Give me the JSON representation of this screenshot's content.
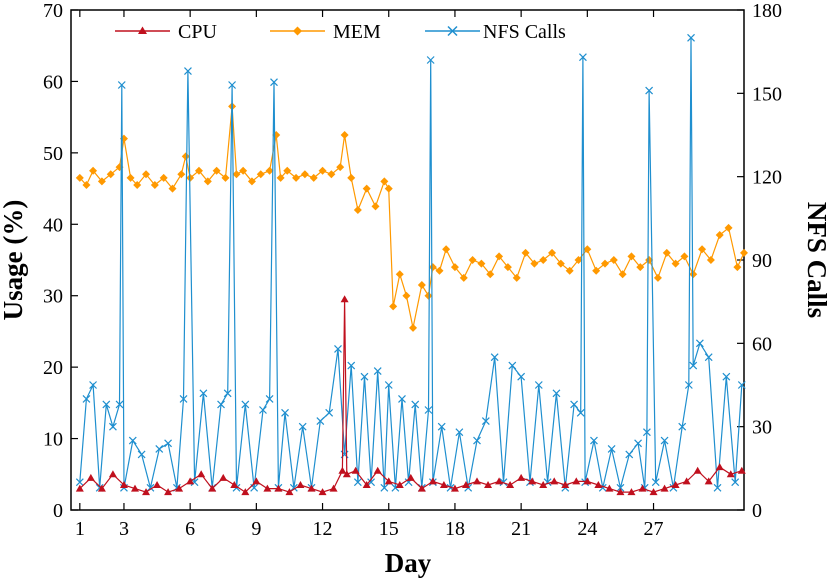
{
  "chart_data": {
    "type": "line",
    "title": "",
    "xlabel": "Day",
    "ylabel_left": "Usage (%)",
    "ylabel_right": "NFS Calls",
    "xlim": [
      0.6,
      31.1
    ],
    "ylim_left": [
      0,
      70
    ],
    "ylim_right": [
      0,
      180
    ],
    "x_ticks": [
      1,
      3,
      6,
      9,
      12,
      15,
      18,
      21,
      24,
      27
    ],
    "y_ticks_left": [
      0,
      10,
      20,
      30,
      40,
      50,
      60,
      70
    ],
    "y_ticks_right": [
      0,
      30,
      60,
      90,
      120,
      150,
      180
    ],
    "grid": false,
    "legend_position": "top",
    "colors": {
      "cpu": "#c0101e",
      "mem": "#ff9900",
      "nfs": "#1f8fcf"
    },
    "series": [
      {
        "name": "CPU",
        "axis": "left",
        "marker": "triangle",
        "x": [
          1.0,
          1.5,
          2.0,
          2.5,
          3.0,
          3.5,
          4.0,
          4.5,
          5.0,
          5.5,
          6.0,
          6.5,
          7.0,
          7.5,
          8.0,
          8.5,
          9.0,
          9.5,
          10.0,
          10.5,
          11.0,
          11.5,
          12.0,
          12.5,
          12.9,
          13.0,
          13.1,
          13.5,
          14.0,
          14.5,
          15.0,
          15.5,
          16.0,
          16.5,
          17.0,
          17.5,
          18.0,
          18.5,
          19.0,
          19.5,
          20.0,
          20.5,
          21.0,
          21.5,
          22.0,
          22.5,
          23.0,
          23.5,
          24.0,
          24.5,
          25.0,
          25.5,
          26.0,
          26.5,
          27.0,
          27.5,
          28.0,
          28.5,
          29.0,
          29.5,
          30.0,
          30.5,
          31.0
        ],
        "values": [
          3.0,
          4.5,
          3.0,
          5.0,
          3.5,
          3.0,
          2.5,
          3.5,
          2.5,
          3.0,
          4.0,
          5.0,
          3.0,
          4.5,
          3.5,
          2.5,
          4.0,
          3.0,
          3.0,
          2.5,
          3.5,
          3.0,
          2.5,
          3.0,
          5.5,
          29.5,
          5.0,
          5.5,
          3.5,
          5.5,
          4.0,
          3.5,
          4.5,
          3.0,
          4.0,
          3.5,
          3.0,
          3.5,
          4.0,
          3.5,
          4.0,
          3.5,
          4.5,
          4.0,
          3.5,
          4.0,
          3.5,
          4.0,
          4.0,
          3.5,
          3.0,
          2.5,
          2.5,
          3.0,
          2.5,
          3.0,
          3.5,
          4.0,
          5.5,
          4.0,
          6.0,
          5.0,
          5.5
        ]
      },
      {
        "name": "MEM",
        "axis": "left",
        "marker": "diamond",
        "x": [
          1.0,
          1.3,
          1.6,
          2.0,
          2.4,
          2.8,
          3.0,
          3.3,
          3.6,
          4.0,
          4.4,
          4.8,
          5.2,
          5.6,
          5.8,
          6.0,
          6.4,
          6.8,
          7.2,
          7.6,
          7.9,
          8.1,
          8.4,
          8.8,
          9.2,
          9.6,
          9.9,
          10.1,
          10.4,
          10.8,
          11.2,
          11.6,
          12.0,
          12.4,
          12.8,
          13.0,
          13.3,
          13.6,
          14.0,
          14.4,
          14.8,
          15.0,
          15.2,
          15.5,
          15.8,
          16.1,
          16.5,
          16.8,
          17.0,
          17.3,
          17.6,
          18.0,
          18.4,
          18.8,
          19.2,
          19.6,
          20.0,
          20.4,
          20.8,
          21.2,
          21.6,
          22.0,
          22.4,
          22.8,
          23.2,
          23.6,
          24.0,
          24.4,
          24.8,
          25.2,
          25.6,
          26.0,
          26.4,
          26.8,
          27.2,
          27.6,
          28.0,
          28.4,
          28.8,
          29.2,
          29.6,
          30.0,
          30.4,
          30.8,
          31.1
        ],
        "values": [
          46.5,
          45.5,
          47.5,
          46.0,
          47.0,
          48.0,
          52.0,
          46.5,
          45.5,
          47.0,
          45.5,
          46.5,
          45.0,
          47.0,
          49.5,
          46.5,
          47.5,
          46.0,
          47.5,
          46.5,
          56.5,
          47.0,
          47.5,
          46.0,
          47.0,
          47.5,
          52.5,
          46.5,
          47.5,
          46.5,
          47.0,
          46.5,
          47.5,
          47.0,
          48.0,
          52.5,
          46.5,
          42.0,
          45.0,
          42.5,
          46.0,
          45.0,
          28.5,
          33.0,
          30.0,
          25.5,
          31.5,
          30.0,
          34.0,
          33.5,
          36.5,
          34.0,
          32.5,
          35.0,
          34.5,
          33.0,
          35.5,
          34.0,
          32.5,
          36.0,
          34.5,
          35.0,
          36.0,
          34.5,
          33.5,
          35.0,
          36.5,
          33.5,
          34.5,
          35.0,
          33.0,
          35.5,
          34.0,
          35.0,
          32.5,
          36.0,
          34.5,
          35.5,
          33.0,
          36.5,
          35.0,
          38.5,
          39.5,
          34.0,
          36.0
        ]
      },
      {
        "name": "NFS Calls",
        "axis": "right",
        "marker": "x",
        "x": [
          1.0,
          1.3,
          1.6,
          1.9,
          2.2,
          2.5,
          2.8,
          2.9,
          3.0,
          3.4,
          3.8,
          4.2,
          4.6,
          5.0,
          5.4,
          5.7,
          5.9,
          6.2,
          6.6,
          7.0,
          7.4,
          7.7,
          7.9,
          8.1,
          8.5,
          8.9,
          9.3,
          9.6,
          9.8,
          10.0,
          10.3,
          10.7,
          11.1,
          11.5,
          11.9,
          12.3,
          12.7,
          13.0,
          13.3,
          13.6,
          13.9,
          14.2,
          14.5,
          14.8,
          15.0,
          15.3,
          15.6,
          15.9,
          16.2,
          16.5,
          16.8,
          16.9,
          17.0,
          17.4,
          17.8,
          18.2,
          18.6,
          19.0,
          19.4,
          19.8,
          20.2,
          20.6,
          21.0,
          21.4,
          21.8,
          22.2,
          22.6,
          23.0,
          23.4,
          23.7,
          23.8,
          23.9,
          24.3,
          24.7,
          25.1,
          25.5,
          25.9,
          26.3,
          26.6,
          26.7,
          26.8,
          27.1,
          27.5,
          27.9,
          28.3,
          28.6,
          28.7,
          28.8,
          29.1,
          29.5,
          29.9,
          30.3,
          30.7,
          31.0
        ],
        "values": [
          10,
          40,
          45,
          8,
          38,
          30,
          38,
          153,
          8,
          25,
          20,
          8,
          22,
          24,
          8,
          40,
          158,
          10,
          42,
          8,
          38,
          42,
          153,
          8,
          38,
          8,
          36,
          40,
          154,
          8,
          35,
          8,
          30,
          8,
          32,
          35,
          58,
          20,
          52,
          10,
          48,
          10,
          50,
          8,
          45,
          8,
          40,
          10,
          38,
          8,
          36,
          162,
          10,
          30,
          8,
          28,
          8,
          25,
          32,
          55,
          10,
          52,
          48,
          10,
          45,
          10,
          42,
          8,
          38,
          35,
          163,
          10,
          25,
          8,
          22,
          8,
          20,
          24,
          8,
          28,
          151,
          10,
          25,
          8,
          30,
          45,
          170,
          52,
          60,
          55,
          8,
          48,
          10,
          45
        ]
      }
    ]
  }
}
